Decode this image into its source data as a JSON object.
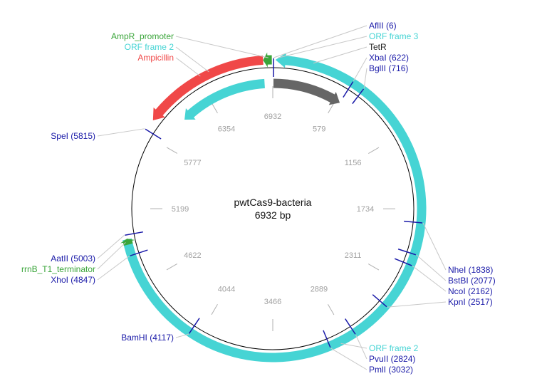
{
  "plasmid": {
    "name": "pwtCas9-bacteria",
    "size_label": "6932 bp",
    "length_bp": 6932
  },
  "colors": {
    "backbone": "#000000",
    "orf": "#46d4d4",
    "resistance": "#f04848",
    "promoter": "#3aa53a",
    "gene": "#666666",
    "enzyme": "#1a1aa8",
    "tick": "#b0b0b0",
    "leader": "#c8c8c8"
  },
  "ticks": [
    {
      "label": "6932",
      "bp": 0
    },
    {
      "label": "579",
      "bp": 579
    },
    {
      "label": "1156",
      "bp": 1156
    },
    {
      "label": "1734",
      "bp": 1734
    },
    {
      "label": "2311",
      "bp": 2311
    },
    {
      "label": "2889",
      "bp": 2889
    },
    {
      "label": "3466",
      "bp": 3466
    },
    {
      "label": "4044",
      "bp": 4044
    },
    {
      "label": "4622",
      "bp": 4622
    },
    {
      "label": "5199",
      "bp": 5199
    },
    {
      "label": "5777",
      "bp": 5777
    },
    {
      "label": "6354",
      "bp": 6354
    }
  ],
  "features": [
    {
      "name": "Ampicillin",
      "type": "resistance",
      "start_bp": 5900,
      "end_bp": 6860,
      "strand": -1,
      "track": 1
    },
    {
      "name": "ORF frame 2",
      "type": "orf",
      "start_bp": 6070,
      "end_bp": 6860,
      "strand": -1,
      "track": 0
    },
    {
      "name": "AmpR_promoter",
      "type": "promoter",
      "start_bp": 6860,
      "end_bp": 6925,
      "strand": -1,
      "track": 1
    },
    {
      "name": "TetR",
      "type": "gene",
      "start_bp": 6,
      "end_bp": 622,
      "strand": 1,
      "track": 0
    },
    {
      "name": "ORF frame 3",
      "type": "orf",
      "start_bp": 20,
      "end_bp": 4970,
      "strand": -1,
      "track": 1
    },
    {
      "name": "rrnB_T1_terminator",
      "type": "promoter",
      "start_bp": 4930,
      "end_bp": 4975,
      "strand": 1,
      "track": 1
    }
  ],
  "labels_right": [
    {
      "text": "AflII (6)",
      "type": "enzyme",
      "bp": 6
    },
    {
      "text": "ORF frame 3",
      "type": "orf",
      "bp": 40
    },
    {
      "text": "TetR",
      "type": "gene",
      "bp": 300
    },
    {
      "text": "XbaI (622)",
      "type": "enzyme",
      "bp": 622
    },
    {
      "text": "BglII (716)",
      "type": "enzyme",
      "bp": 716
    },
    {
      "text": "NheI (1838)",
      "type": "enzyme",
      "bp": 1838
    },
    {
      "text": "BstBI (2077)",
      "type": "enzyme",
      "bp": 2077
    },
    {
      "text": "NcoI (2162)",
      "type": "enzyme",
      "bp": 2162
    },
    {
      "text": "KpnI (2517)",
      "type": "enzyme",
      "bp": 2517
    },
    {
      "text": "ORF frame 2",
      "type": "orf",
      "bp": 2950
    },
    {
      "text": "PvuII (2824)",
      "type": "enzyme",
      "bp": 2824
    },
    {
      "text": "PmlI (3032)",
      "type": "enzyme",
      "bp": 3032
    }
  ],
  "labels_left": [
    {
      "text": "AmpR_promoter",
      "type": "promoter",
      "bp": 6900
    },
    {
      "text": "ORF frame 2",
      "type": "orf",
      "bp": 6450
    },
    {
      "text": "Ampicillin",
      "type": "resistance",
      "bp": 6380
    },
    {
      "text": "SpeI (5815)",
      "type": "enzyme",
      "bp": 5815
    },
    {
      "text": "AatII (5003)",
      "type": "enzyme",
      "bp": 5003
    },
    {
      "text": "rrnB_T1_terminator",
      "type": "promoter",
      "bp": 4950
    },
    {
      "text": "XhoI (4847)",
      "type": "enzyme",
      "bp": 4847
    },
    {
      "text": "BamHI (4117)",
      "type": "enzyme",
      "bp": 4117
    }
  ]
}
